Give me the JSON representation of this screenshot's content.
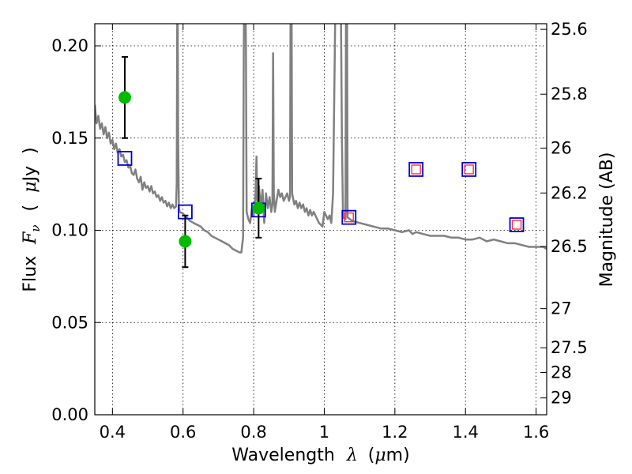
{
  "chart_data": {
    "type": "scatter",
    "xlabel": {
      "prefix": "Wavelength",
      "symbol": "λ",
      "unit_open": "(",
      "unit_mu": "μ",
      "unit_rest": "m)"
    },
    "ylabel": {
      "prefix": "Flux",
      "symbol": "F",
      "subscript": "ν",
      "unit_open": "(",
      "unit_mu": "μ",
      "unit_rest": "Jy",
      "unit_close": ")"
    },
    "y2label": "Magnitude (AB)",
    "xlim": [
      0.35,
      1.63
    ],
    "ylim": [
      0.0,
      0.212
    ],
    "grid": true,
    "x_ticks": [
      {
        "value": 0.4,
        "label": "0.4"
      },
      {
        "value": 0.6,
        "label": "0.6"
      },
      {
        "value": 0.8,
        "label": "0.8"
      },
      {
        "value": 1.0,
        "label": "1"
      },
      {
        "value": 1.2,
        "label": "1.2"
      },
      {
        "value": 1.4,
        "label": "1.4"
      },
      {
        "value": 1.6,
        "label": "1.6"
      }
    ],
    "y_ticks": [
      {
        "value": 0.0,
        "label": "0.00"
      },
      {
        "value": 0.05,
        "label": "0.05"
      },
      {
        "value": 0.1,
        "label": "0.10"
      },
      {
        "value": 0.15,
        "label": "0.15"
      },
      {
        "value": 0.2,
        "label": "0.20"
      }
    ],
    "mag_ticks": [
      {
        "value": 25.6,
        "label": "25.6"
      },
      {
        "value": 25.8,
        "label": "25.8"
      },
      {
        "value": 26.0,
        "label": "26"
      },
      {
        "value": 26.2,
        "label": "26.2"
      },
      {
        "value": 26.5,
        "label": "26.5"
      },
      {
        "value": 27.0,
        "label": "27"
      },
      {
        "value": 27.5,
        "label": "27.5"
      },
      {
        "value": 28.0,
        "label": "28"
      },
      {
        "value": 29.0,
        "label": "29"
      }
    ],
    "model_sed": {
      "color": "#808080",
      "points": [
        [
          0.35,
          0.168
        ],
        [
          0.355,
          0.158
        ],
        [
          0.36,
          0.162
        ],
        [
          0.365,
          0.155
        ],
        [
          0.37,
          0.158
        ],
        [
          0.375,
          0.152
        ],
        [
          0.38,
          0.156
        ],
        [
          0.385,
          0.15
        ],
        [
          0.39,
          0.153
        ],
        [
          0.395,
          0.147
        ],
        [
          0.4,
          0.149
        ],
        [
          0.405,
          0.144
        ],
        [
          0.41,
          0.147
        ],
        [
          0.415,
          0.142
        ],
        [
          0.42,
          0.144
        ],
        [
          0.425,
          0.14
        ],
        [
          0.43,
          0.141
        ],
        [
          0.435,
          0.137
        ],
        [
          0.44,
          0.138
        ],
        [
          0.445,
          0.134
        ],
        [
          0.45,
          0.135
        ],
        [
          0.455,
          0.131
        ],
        [
          0.46,
          0.13
        ],
        [
          0.465,
          0.133
        ],
        [
          0.47,
          0.128
        ],
        [
          0.475,
          0.126
        ],
        [
          0.48,
          0.129
        ],
        [
          0.485,
          0.122
        ],
        [
          0.49,
          0.126
        ],
        [
          0.495,
          0.123
        ],
        [
          0.5,
          0.124
        ],
        [
          0.505,
          0.121
        ],
        [
          0.51,
          0.124
        ],
        [
          0.515,
          0.12
        ],
        [
          0.52,
          0.121
        ],
        [
          0.525,
          0.118
        ],
        [
          0.53,
          0.119
        ],
        [
          0.535,
          0.116
        ],
        [
          0.54,
          0.118
        ],
        [
          0.545,
          0.115
        ],
        [
          0.55,
          0.116
        ],
        [
          0.555,
          0.113
        ],
        [
          0.56,
          0.115
        ],
        [
          0.565,
          0.112
        ],
        [
          0.57,
          0.114
        ],
        [
          0.575,
          0.112
        ],
        [
          0.58,
          0.113
        ],
        [
          0.582,
          0.125
        ],
        [
          0.584,
          0.25
        ],
        [
          0.586,
          0.15
        ],
        [
          0.588,
          0.113
        ],
        [
          0.59,
          0.11
        ],
        [
          0.6,
          0.109
        ],
        [
          0.61,
          0.107
        ],
        [
          0.62,
          0.105
        ],
        [
          0.63,
          0.104
        ],
        [
          0.64,
          0.103
        ],
        [
          0.65,
          0.102
        ],
        [
          0.66,
          0.1
        ],
        [
          0.67,
          0.099
        ],
        [
          0.68,
          0.097
        ],
        [
          0.69,
          0.096
        ],
        [
          0.7,
          0.095
        ],
        [
          0.71,
          0.094
        ],
        [
          0.72,
          0.093
        ],
        [
          0.73,
          0.092
        ],
        [
          0.74,
          0.09
        ],
        [
          0.75,
          0.089
        ],
        [
          0.76,
          0.088
        ],
        [
          0.765,
          0.088
        ],
        [
          0.77,
          0.096
        ],
        [
          0.772,
          0.2
        ],
        [
          0.774,
          0.25
        ],
        [
          0.776,
          0.25
        ],
        [
          0.778,
          0.2
        ],
        [
          0.78,
          0.11
        ],
        [
          0.785,
          0.106
        ],
        [
          0.79,
          0.104
        ],
        [
          0.795,
          0.112
        ],
        [
          0.8,
          0.108
        ],
        [
          0.805,
          0.118
        ],
        [
          0.808,
          0.14
        ],
        [
          0.81,
          0.115
        ],
        [
          0.815,
          0.124
        ],
        [
          0.82,
          0.112
        ],
        [
          0.825,
          0.122
        ],
        [
          0.83,
          0.104
        ],
        [
          0.835,
          0.12
        ],
        [
          0.84,
          0.112
        ],
        [
          0.845,
          0.118
        ],
        [
          0.85,
          0.11
        ],
        [
          0.853,
          0.114
        ],
        [
          0.855,
          0.196
        ],
        [
          0.857,
          0.12
        ],
        [
          0.86,
          0.11
        ],
        [
          0.865,
          0.116
        ],
        [
          0.87,
          0.122
        ],
        [
          0.875,
          0.118
        ],
        [
          0.88,
          0.12
        ],
        [
          0.885,
          0.116
        ],
        [
          0.89,
          0.118
        ],
        [
          0.895,
          0.12
        ],
        [
          0.9,
          0.116
        ],
        [
          0.903,
          0.118
        ],
        [
          0.905,
          0.25
        ],
        [
          0.907,
          0.25
        ],
        [
          0.909,
          0.12
        ],
        [
          0.915,
          0.114
        ],
        [
          0.92,
          0.116
        ],
        [
          0.925,
          0.112
        ],
        [
          0.93,
          0.115
        ],
        [
          0.935,
          0.112
        ],
        [
          0.94,
          0.114
        ],
        [
          0.945,
          0.11
        ],
        [
          0.95,
          0.112
        ],
        [
          0.955,
          0.108
        ],
        [
          0.96,
          0.111
        ],
        [
          0.965,
          0.108
        ],
        [
          0.97,
          0.11
        ],
        [
          0.975,
          0.108
        ],
        [
          0.98,
          0.106
        ],
        [
          0.985,
          0.104
        ],
        [
          0.99,
          0.103
        ],
        [
          0.995,
          0.102
        ],
        [
          1.0,
          0.11
        ],
        [
          1.005,
          0.108
        ],
        [
          1.01,
          0.106
        ],
        [
          1.015,
          0.108
        ],
        [
          1.02,
          0.104
        ],
        [
          1.025,
          0.12
        ],
        [
          1.03,
          0.2
        ],
        [
          1.033,
          0.25
        ],
        [
          1.046,
          0.25
        ],
        [
          1.05,
          0.15
        ],
        [
          1.053,
          0.107
        ],
        [
          1.06,
          0.106
        ],
        [
          1.062,
          0.25
        ],
        [
          1.064,
          0.25
        ],
        [
          1.066,
          0.107
        ],
        [
          1.08,
          0.105
        ],
        [
          1.1,
          0.104
        ],
        [
          1.12,
          0.103
        ],
        [
          1.14,
          0.102
        ],
        [
          1.16,
          0.101
        ],
        [
          1.18,
          0.101
        ],
        [
          1.2,
          0.1
        ],
        [
          1.22,
          0.099
        ],
        [
          1.24,
          0.1
        ],
        [
          1.25,
          0.098
        ],
        [
          1.26,
          0.099
        ],
        [
          1.28,
          0.098
        ],
        [
          1.3,
          0.097
        ],
        [
          1.32,
          0.097
        ],
        [
          1.34,
          0.097
        ],
        [
          1.36,
          0.096
        ],
        [
          1.38,
          0.096
        ],
        [
          1.4,
          0.095
        ],
        [
          1.42,
          0.095
        ],
        [
          1.44,
          0.096
        ],
        [
          1.46,
          0.094
        ],
        [
          1.48,
          0.095
        ],
        [
          1.5,
          0.094
        ],
        [
          1.52,
          0.093
        ],
        [
          1.54,
          0.093
        ],
        [
          1.56,
          0.092
        ],
        [
          1.58,
          0.091
        ],
        [
          1.6,
          0.091
        ],
        [
          1.62,
          0.091
        ],
        [
          1.63,
          0.09
        ]
      ]
    },
    "observed": {
      "color": "#00bb00",
      "points": [
        {
          "x": 0.435,
          "y": 0.172,
          "yerr": 0.022
        },
        {
          "x": 0.606,
          "y": 0.094,
          "yerr": 0.014
        },
        {
          "x": 0.814,
          "y": 0.112,
          "yerr": 0.016
        }
      ]
    },
    "model_photometry": {
      "color": "#0000dd",
      "points": [
        {
          "x": 0.435,
          "y": 0.139
        },
        {
          "x": 0.606,
          "y": 0.11
        },
        {
          "x": 0.814,
          "y": 0.111
        },
        {
          "x": 1.07,
          "y": 0.107
        },
        {
          "x": 1.26,
          "y": 0.133
        },
        {
          "x": 1.41,
          "y": 0.133
        },
        {
          "x": 1.545,
          "y": 0.103
        }
      ]
    },
    "upper_bands": {
      "color": "#ff3333",
      "points": [
        {
          "x": 1.07,
          "y": 0.107
        },
        {
          "x": 1.26,
          "y": 0.133
        },
        {
          "x": 1.41,
          "y": 0.133
        },
        {
          "x": 1.545,
          "y": 0.103
        }
      ]
    }
  }
}
